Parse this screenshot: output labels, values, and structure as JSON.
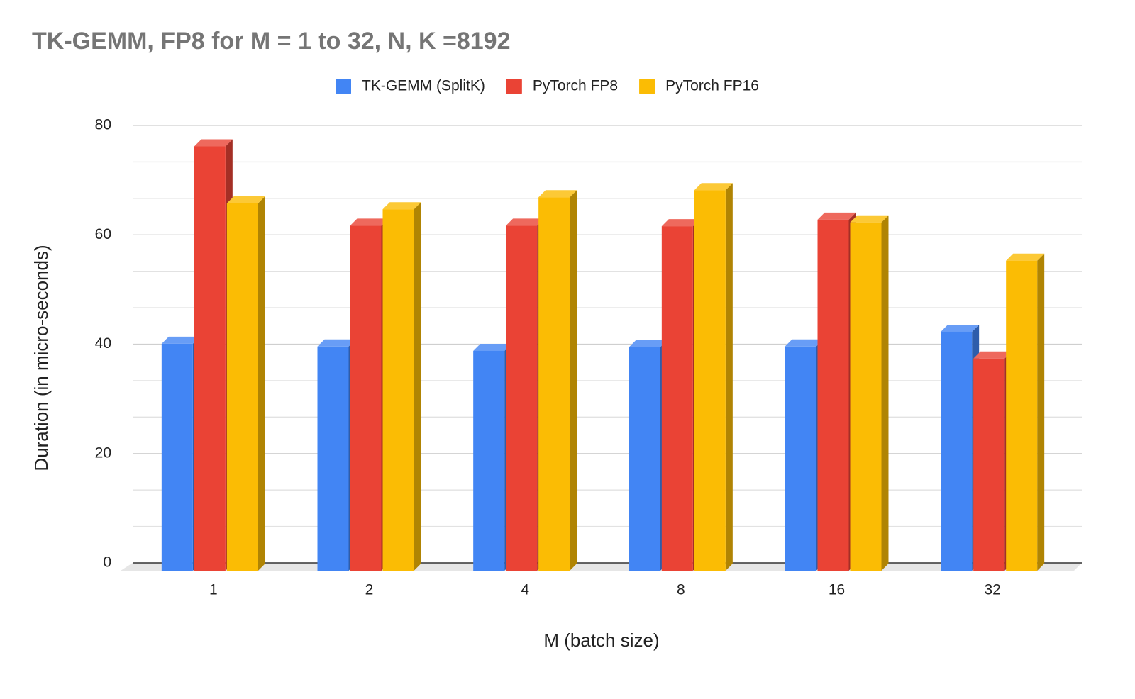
{
  "chart_data": {
    "type": "bar3d",
    "title": "TK-GEMM, FP8 for M = 1 to 32,  N, K =8192",
    "x_label": "M (batch size)",
    "y_label": "Duration (in micro-seconds)",
    "categories": [
      "1",
      "2",
      "4",
      "8",
      "16",
      "32"
    ],
    "series": [
      {
        "name": "TK-GEMM (SplitK)",
        "color": "#4285f4",
        "values": [
          41.5,
          41.0,
          40.2,
          40.9,
          41.0,
          43.7
        ]
      },
      {
        "name": "PyTorch FP8",
        "color": "#ea4335",
        "values": [
          77.6,
          63.1,
          63.1,
          63.0,
          64.2,
          38.8
        ]
      },
      {
        "name": "PyTorch FP16",
        "color": "#fbbc04",
        "values": [
          67.2,
          66.1,
          68.3,
          69.6,
          63.7,
          56.7
        ]
      }
    ],
    "ylim": [
      0,
      80
    ],
    "yticks": [
      0,
      20,
      40,
      60,
      80
    ],
    "grid": true,
    "minor_grid_divisions": 3,
    "legend": "top"
  }
}
